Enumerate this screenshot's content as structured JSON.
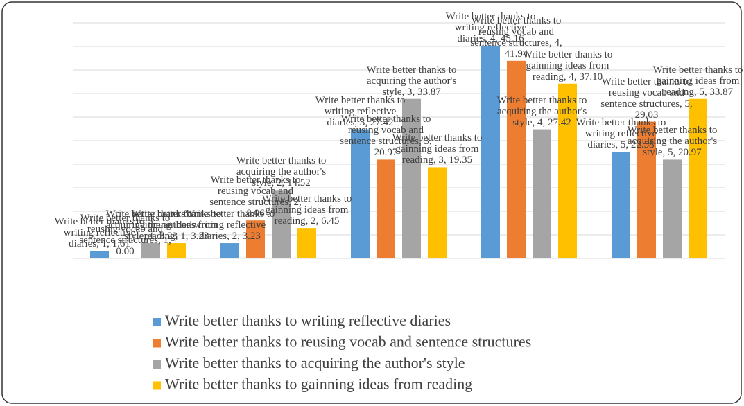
{
  "chart_data": {
    "type": "bar",
    "categories": [
      "1",
      "2",
      "3",
      "4",
      "5"
    ],
    "series": [
      {
        "name": "Write better thanks to writing reflective diaries",
        "color": "#5b9bd5",
        "values": [
          1.61,
          3.23,
          27.42,
          45.16,
          22.58
        ],
        "value_labels": [
          "Write better thanks to writing reflective diaries, 1, 1.61",
          "Write better thanks to writing reflective diaries, 2, 3.23",
          "Write better thanks to writing reflective diaries, 3, 27.42",
          "Write better thanks to writing reflective diaries, 4, 45.16",
          "Write better thanks to writing reflective diaries, 5, 22.58"
        ]
      },
      {
        "name": "Write better thanks to reusing vocab and sentence structures",
        "color": "#ed7d31",
        "values": [
          0,
          8.06,
          20.97,
          41.94,
          29.03
        ],
        "value_labels": [
          "Write better thanks to reusing vocab and sentence structures, 1, 0.00",
          "Write better thanks to reusing vocab and sentence structures, 2, 8.06",
          "Write better thanks to reusing vocab and sentence structures, 3, 20.97",
          "Write better thanks to reusing vocab and sentence structures, 4, 41.94",
          "Write better thanks to reusing vocab and sentence structures, 5, 29.03"
        ]
      },
      {
        "name": "Write better thanks to acquiring the author's style",
        "color": "#a5a5a5",
        "values": [
          3.23,
          14.52,
          33.87,
          27.42,
          20.97
        ],
        "value_labels": [
          "Write better thanks to acquiring the author's style, 1, 3.23",
          "Write better thanks to acquiring the author's style, 2, 14.52",
          "Write better thanks to acquiring the author's style, 3, 33.87",
          "Write better thanks to acquiring the author's style, 4, 27.42",
          "Write better thanks to acquiring the author's style, 5, 20.97"
        ]
      },
      {
        "name": "Write better thanks to gainning ideas from reading",
        "color": "#ffc000",
        "values": [
          3.23,
          6.45,
          19.35,
          37.1,
          33.87
        ],
        "value_labels": [
          "Write better thanks to gainning ideas from reading, 1, 3.23",
          "Write better thanks to gainning ideas from reading, 2, 6.45",
          "Write better thanks to gainning ideas from reading, 3, 19.35",
          "Write better thanks to gainning ideas from reading, 4, 37.10",
          "Write better thanks to gainning ideas from reading, 5, 33.87"
        ]
      }
    ],
    "ylim": [
      0,
      50
    ],
    "yticks": [
      0,
      5,
      10,
      15,
      20,
      25,
      30,
      35,
      40,
      45,
      50
    ],
    "grid": true,
    "legend": "bottom"
  }
}
